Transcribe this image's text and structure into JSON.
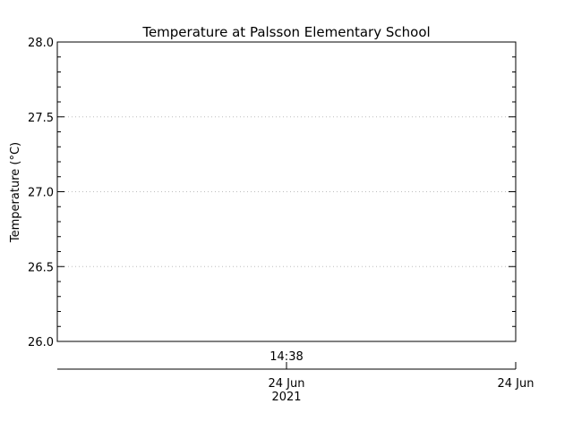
{
  "chart_data": {
    "type": "line",
    "title": "Temperature at Palsson Elementary School",
    "ylabel": "Temperature (°C)",
    "xlabel": "",
    "ylim": [
      26.0,
      28.0
    ],
    "y_ticks": [
      {
        "value": 26.0,
        "label": "26.0"
      },
      {
        "value": 26.5,
        "label": "26.5"
      },
      {
        "value": 27.0,
        "label": "27.0"
      },
      {
        "value": 27.5,
        "label": "27.5"
      },
      {
        "value": 28.0,
        "label": "28.0"
      }
    ],
    "grid": true,
    "x_time_label": "14:38",
    "x_date_ticks": [
      {
        "label": "24 Jun",
        "sub": "2021"
      },
      {
        "label": "24 Jun",
        "sub": ""
      }
    ],
    "series": []
  }
}
